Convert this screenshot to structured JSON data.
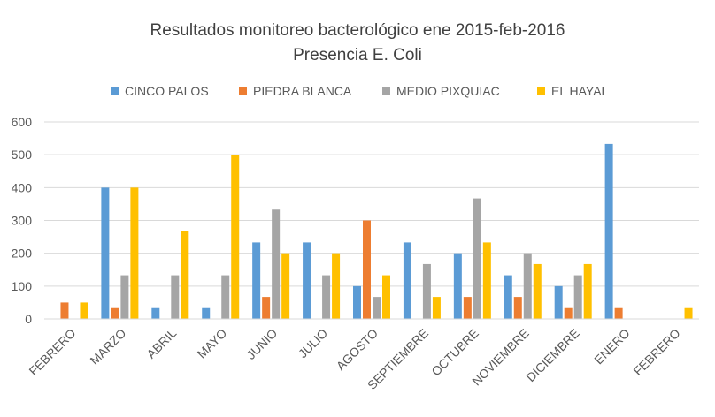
{
  "chart_data": {
    "type": "bar",
    "title": "Resultados monitoreo bacterológico ene 2015-feb-2016",
    "subtitle": "Presencia E. Coli",
    "xlabel": "",
    "ylabel": "",
    "ylim": [
      0,
      600
    ],
    "yticks": [
      "0",
      "100",
      "200",
      "300",
      "400",
      "500",
      "600"
    ],
    "grid": true,
    "legend_position": "top",
    "categories": [
      "FEBRERO",
      "MARZO",
      "ABRIL",
      "MAYO",
      "JUNIO",
      "JULIO",
      "AGOSTO",
      "SEPTIEMBRE",
      "OCTUBRE",
      "NOVIEMBRE",
      "DICIEMBRE",
      "ENERO",
      "FEBRERO"
    ],
    "series": [
      {
        "name": "CINCO PALOS",
        "color": "#5B9BD5",
        "values": [
          0,
          400,
          33,
          33,
          233,
          233,
          100,
          233,
          200,
          133,
          100,
          533,
          0
        ]
      },
      {
        "name": "PIEDRA BLANCA",
        "color": "#ED7D31",
        "values": [
          50,
          33,
          0,
          0,
          67,
          0,
          300,
          0,
          67,
          67,
          33,
          33,
          0
        ]
      },
      {
        "name": "MEDIO PIXQUIAC",
        "color": "#A5A5A5",
        "values": [
          0,
          133,
          133,
          133,
          333,
          133,
          67,
          167,
          367,
          200,
          133,
          0,
          0
        ]
      },
      {
        "name": "EL HAYAL",
        "color": "#FFC000",
        "values": [
          50,
          400,
          267,
          500,
          200,
          200,
          133,
          67,
          233,
          167,
          167,
          0,
          33
        ]
      }
    ]
  }
}
